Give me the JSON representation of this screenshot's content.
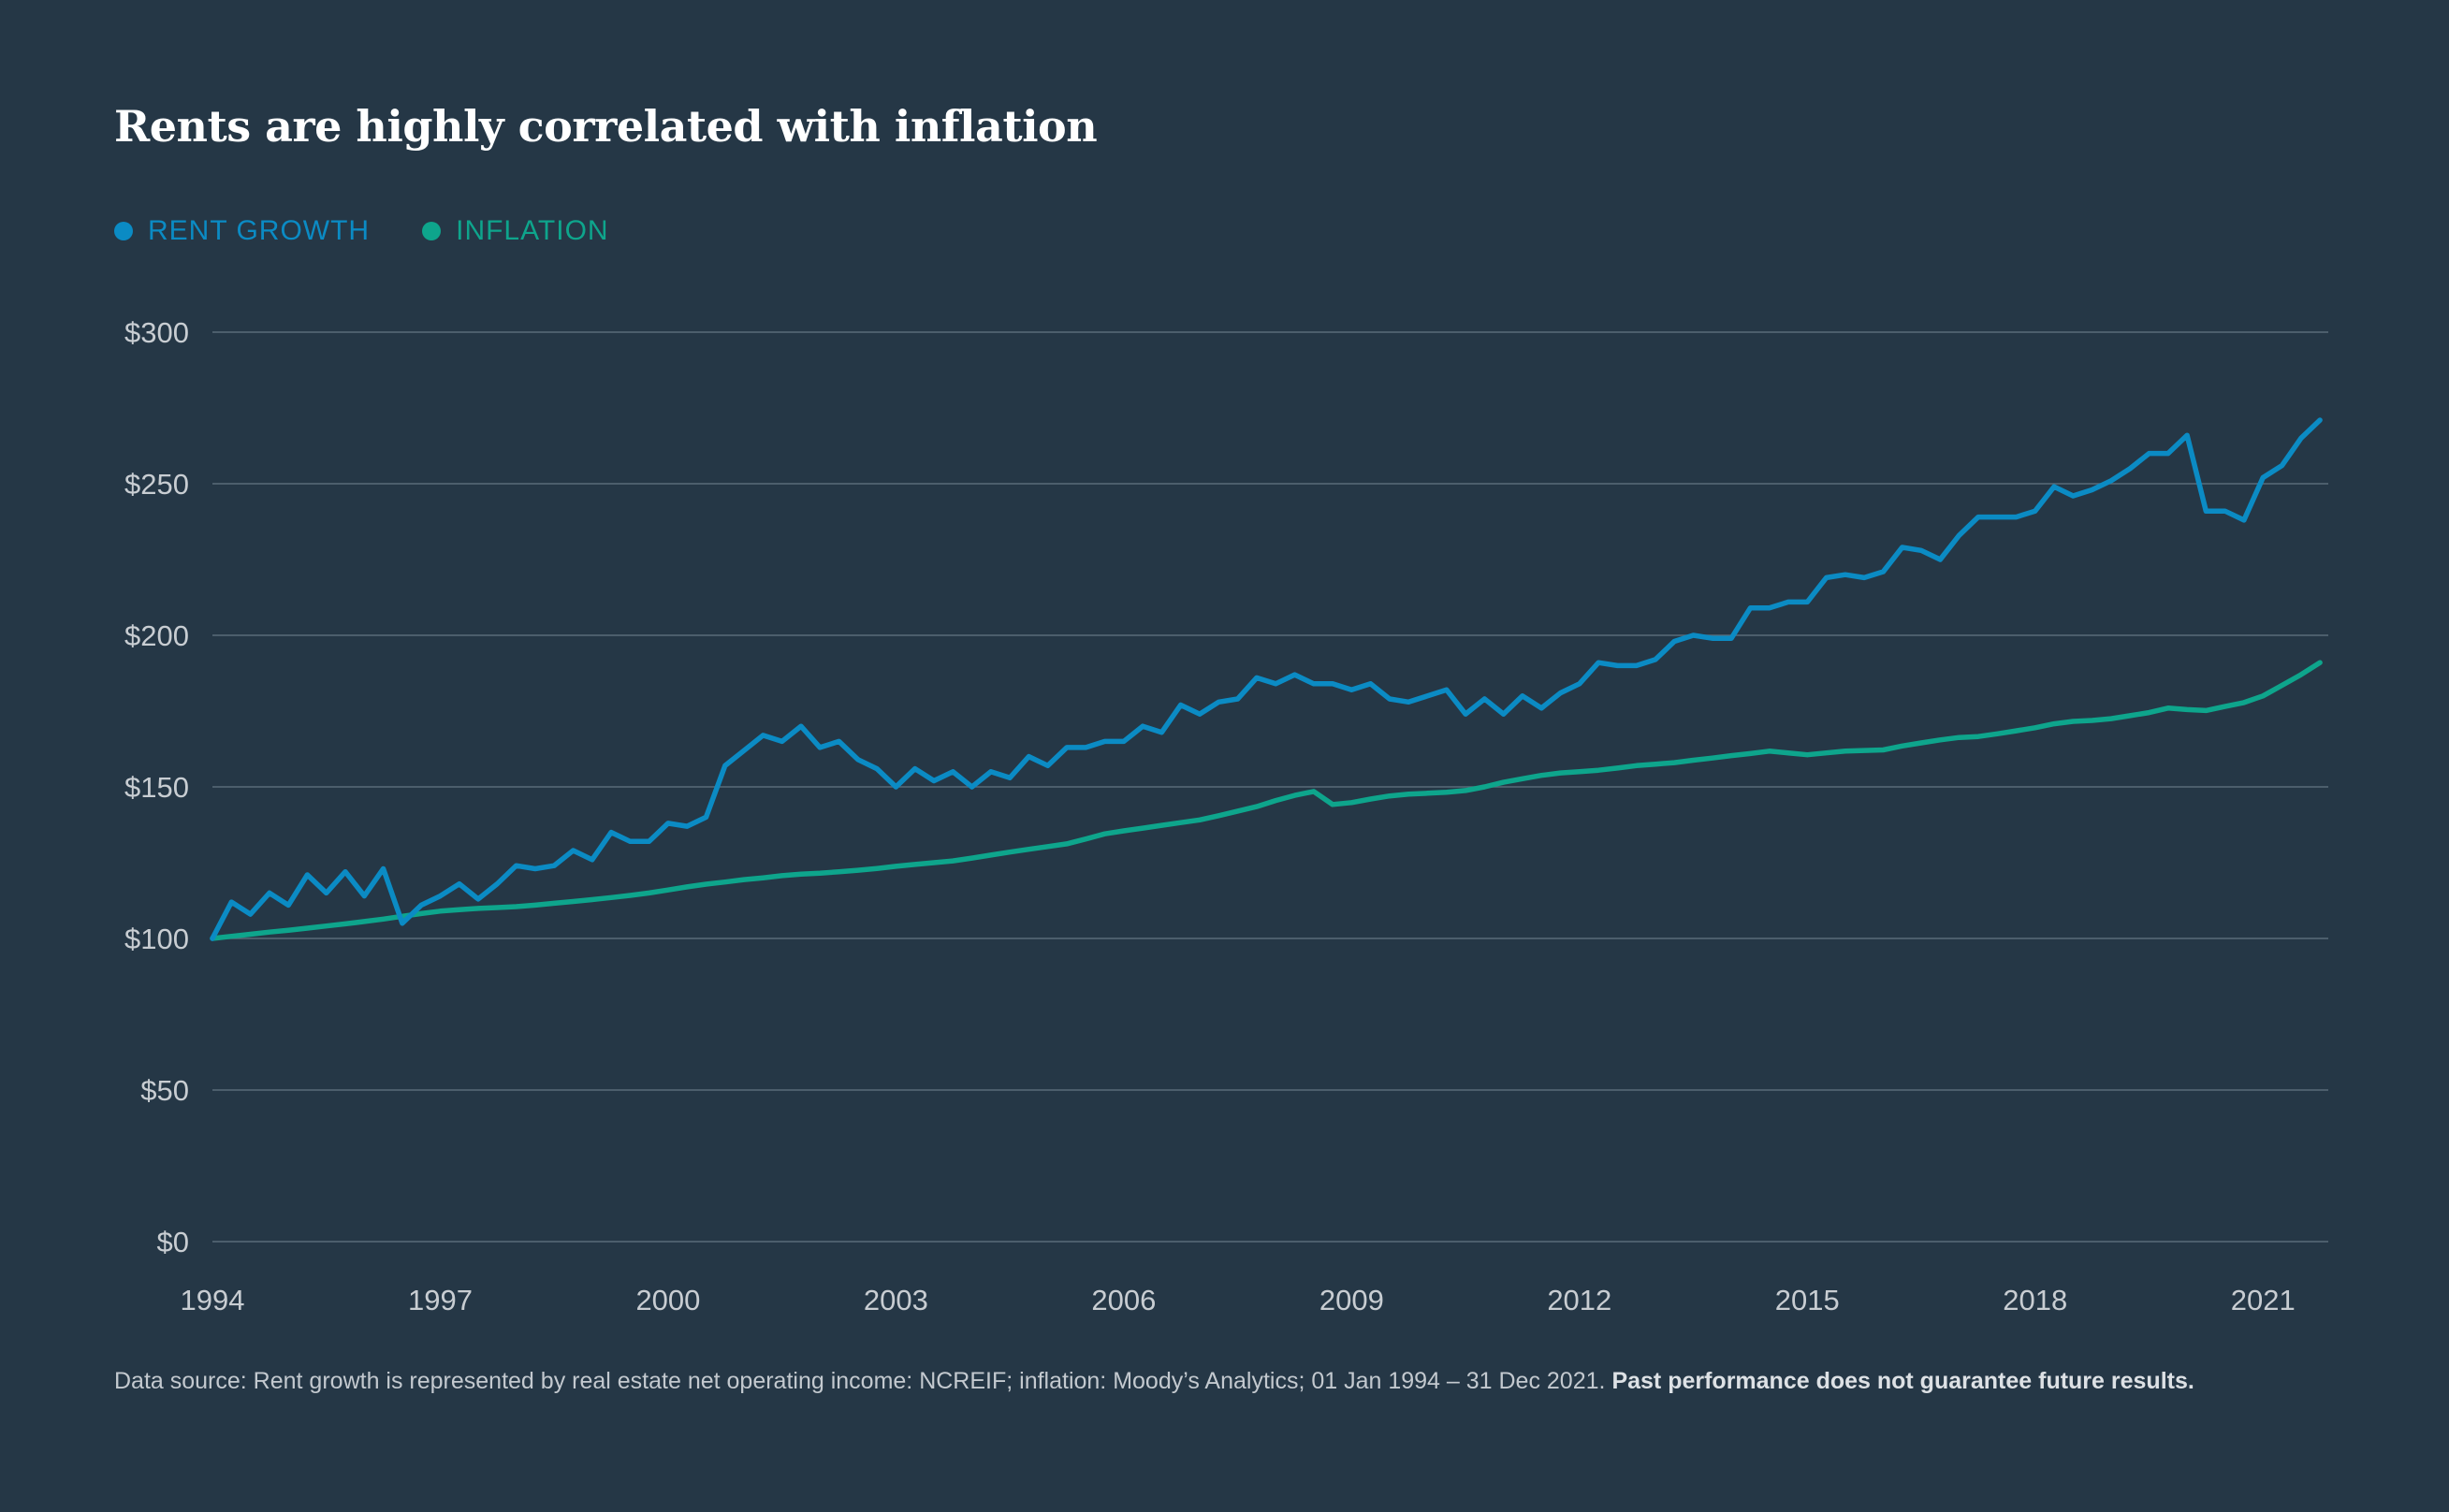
{
  "title": "Rents are highly correlated with inflation",
  "colors": {
    "background": "#253746",
    "rent": "#0b8bc4",
    "inflation": "#0ea58c",
    "grid": "#5a6b79",
    "tick": "#c8cdd2"
  },
  "legend": {
    "rent_label": "RENT GROWTH",
    "inflation_label": "INFLATION"
  },
  "footnote": {
    "text": "Data source: Rent growth is represented by real estate net operating income: NCREIF; inflation: Moody’s Analytics; 01 Jan 1994 – 31 Dec 2021.",
    "bold": "Past performance does not guarantee future results."
  },
  "chart_data": {
    "type": "line",
    "title": "Rents are highly correlated with inflation",
    "xlabel": "",
    "ylabel": "",
    "xlim": [
      1994,
      2021.86
    ],
    "ylim": [
      0,
      300
    ],
    "x_ticks": [
      1994,
      1997,
      2000,
      2003,
      2006,
      2009,
      2012,
      2015,
      2018,
      2021
    ],
    "y_ticks": [
      0,
      50,
      100,
      150,
      200,
      250,
      300
    ],
    "y_tick_labels": [
      "$0",
      "$50",
      "$100",
      "$150",
      "$200",
      "$250",
      "$300"
    ],
    "grid": true,
    "legend_position": "top-left",
    "series": [
      {
        "name": "RENT GROWTH",
        "x": [
          1994,
          1994.25,
          1994.5,
          1994.75,
          1995,
          1995.25,
          1995.5,
          1995.75,
          1996,
          1996.25,
          1996.5,
          1996.75,
          1997,
          1997.25,
          1997.5,
          1997.75,
          1998,
          1998.25,
          1998.5,
          1998.75,
          1999,
          1999.25,
          1999.5,
          1999.75,
          2000,
          2000.25,
          2000.5,
          2000.75,
          2001,
          2001.25,
          2001.5,
          2001.75,
          2002,
          2002.25,
          2002.5,
          2002.75,
          2003,
          2003.25,
          2003.5,
          2003.75,
          2004,
          2004.25,
          2004.5,
          2004.75,
          2005,
          2005.25,
          2005.5,
          2005.75,
          2006,
          2006.25,
          2006.5,
          2006.75,
          2007,
          2007.25,
          2007.5,
          2007.75,
          2008,
          2008.25,
          2008.5,
          2008.75,
          2009,
          2009.25,
          2009.5,
          2009.75,
          2010,
          2010.25,
          2010.5,
          2010.75,
          2011,
          2011.25,
          2011.5,
          2011.75,
          2012,
          2012.25,
          2012.5,
          2012.75,
          2013,
          2013.25,
          2013.5,
          2013.75,
          2014,
          2014.25,
          2014.5,
          2014.75,
          2015,
          2015.25,
          2015.5,
          2015.75,
          2016,
          2016.25,
          2016.5,
          2016.75,
          2017,
          2017.25,
          2017.5,
          2017.75,
          2018,
          2018.25,
          2018.5,
          2018.75,
          2019,
          2019.25,
          2019.5,
          2019.75,
          2020,
          2020.25,
          2020.5,
          2020.75,
          2021,
          2021.25,
          2021.5,
          2021.75
        ],
        "values": [
          100,
          112,
          108,
          115,
          111,
          121,
          115,
          122,
          114,
          123,
          105,
          111,
          114,
          118,
          113,
          118,
          124,
          123,
          124,
          129,
          126,
          135,
          132,
          132,
          138,
          137,
          140,
          157,
          162,
          167,
          165,
          170,
          163,
          165,
          159,
          156,
          150,
          156,
          152,
          155,
          150,
          155,
          153,
          160,
          157,
          163,
          163,
          165,
          165,
          170,
          168,
          177,
          174,
          178,
          179,
          186,
          184,
          187,
          184,
          184,
          182,
          184,
          179,
          178,
          180,
          182,
          174,
          179,
          174,
          180,
          176,
          181,
          184,
          191,
          190,
          190,
          192,
          198,
          200,
          199,
          199,
          209,
          209,
          211,
          211,
          219,
          220,
          219,
          221,
          229,
          228,
          225,
          233,
          239,
          239,
          239,
          241,
          249,
          246,
          248,
          251,
          255,
          260,
          260,
          266,
          241,
          241,
          238,
          252,
          256,
          265,
          271
        ]
      },
      {
        "name": "INFLATION",
        "x": [
          1994,
          1994.25,
          1994.5,
          1994.75,
          1995,
          1995.25,
          1995.5,
          1995.75,
          1996,
          1996.25,
          1996.5,
          1996.75,
          1997,
          1997.25,
          1997.5,
          1997.75,
          1998,
          1998.25,
          1998.5,
          1998.75,
          1999,
          1999.25,
          1999.5,
          1999.75,
          2000,
          2000.25,
          2000.5,
          2000.75,
          2001,
          2001.25,
          2001.5,
          2001.75,
          2002,
          2002.25,
          2002.5,
          2002.75,
          2003,
          2003.25,
          2003.5,
          2003.75,
          2004,
          2004.25,
          2004.5,
          2004.75,
          2005,
          2005.25,
          2005.5,
          2005.75,
          2006,
          2006.25,
          2006.5,
          2006.75,
          2007,
          2007.25,
          2007.5,
          2007.75,
          2008,
          2008.25,
          2008.5,
          2008.75,
          2009,
          2009.25,
          2009.5,
          2009.75,
          2010,
          2010.25,
          2010.5,
          2010.75,
          2011,
          2011.25,
          2011.5,
          2011.75,
          2012,
          2012.25,
          2012.5,
          2012.75,
          2013,
          2013.25,
          2013.5,
          2013.75,
          2014,
          2014.25,
          2014.5,
          2014.75,
          2015,
          2015.25,
          2015.5,
          2015.75,
          2016,
          2016.25,
          2016.5,
          2016.75,
          2017,
          2017.25,
          2017.5,
          2017.75,
          2018,
          2018.25,
          2018.5,
          2018.75,
          2019,
          2019.25,
          2019.5,
          2019.75,
          2020,
          2020.25,
          2020.5,
          2020.75,
          2021,
          2021.25,
          2021.5,
          2021.75
        ],
        "values": [
          100,
          100.7,
          101.4,
          102.1,
          102.7,
          103.4,
          104.1,
          104.8,
          105.6,
          106.4,
          107.3,
          108.2,
          109,
          109.5,
          109.9,
          110.2,
          110.5,
          111,
          111.6,
          112.2,
          112.8,
          113.5,
          114.2,
          115,
          116,
          117,
          117.9,
          118.6,
          119.4,
          120,
          120.7,
          121.2,
          121.5,
          122,
          122.5,
          123.1,
          123.8,
          124.4,
          125,
          125.6,
          126.5,
          127.5,
          128.5,
          129.4,
          130.3,
          131.2,
          132.8,
          134.5,
          135.5,
          136.4,
          137.3,
          138.2,
          139.1,
          140.5,
          142,
          143.5,
          145.5,
          147.2,
          148.5,
          144.2,
          144.8,
          146,
          147,
          147.6,
          147.9,
          148.2,
          148.8,
          150,
          151.5,
          152.7,
          153.8,
          154.6,
          155,
          155.5,
          156.2,
          157,
          157.5,
          158,
          158.8,
          159.5,
          160.3,
          161,
          161.8,
          161.2,
          160.6,
          161.2,
          161.8,
          162,
          162.2,
          163.5,
          164.5,
          165.5,
          166.3,
          166.6,
          167.5,
          168.5,
          169.5,
          170.8,
          171.6,
          171.9,
          172.5,
          173.5,
          174.5,
          176,
          175.5,
          175.2,
          176.5,
          177.8,
          180,
          183.5,
          187,
          191
        ]
      }
    ]
  }
}
